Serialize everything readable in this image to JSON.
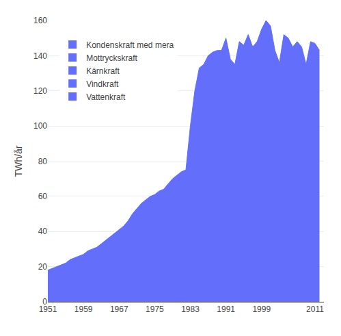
{
  "chart_data": {
    "type": "area",
    "y_label": "TWh/år",
    "annotations": [
      "Kondenskraft med mera",
      "Mottryckskraft",
      "Kärnkraft",
      "Vindkraft",
      "Vattenkraft"
    ],
    "legend": "upper left",
    "x": [
      1951,
      1952,
      1953,
      1954,
      1955,
      1956,
      1957,
      1958,
      1959,
      1960,
      1961,
      1962,
      1963,
      1964,
      1965,
      1966,
      1967,
      1968,
      1969,
      1970,
      1971,
      1972,
      1973,
      1974,
      1975,
      1976,
      1977,
      1978,
      1979,
      1980,
      1981,
      1982,
      1983,
      1984,
      1985,
      1986,
      1987,
      1988,
      1989,
      1990,
      1991,
      1992,
      1993,
      1994,
      1995,
      1996,
      1997,
      1998,
      1999,
      2000,
      2001,
      2002,
      2003,
      2004,
      2005,
      2006,
      2007,
      2008,
      2009,
      2010,
      2011,
      2012
    ],
    "values": [
      18,
      19,
      20,
      21,
      22,
      24,
      25,
      26,
      27,
      29,
      30,
      31,
      33,
      35,
      37,
      39,
      41,
      43,
      46,
      50,
      53,
      56,
      58,
      60,
      61,
      63,
      64,
      67,
      70,
      72,
      74,
      75,
      100,
      120,
      133,
      135,
      140,
      142,
      143,
      143,
      150,
      138,
      135,
      148,
      146,
      152,
      145,
      148,
      155,
      160,
      157,
      143,
      136,
      152,
      150,
      145,
      148,
      145,
      135,
      148,
      147,
      143
    ],
    "xlim": [
      1951,
      2013
    ],
    "xticks": [
      1951,
      1959,
      1967,
      1975,
      1983,
      1991,
      1999,
      2011
    ],
    "ylim": [
      0,
      160
    ],
    "yticks": [
      0,
      20,
      40,
      60,
      80,
      100,
      120,
      140,
      160
    ],
    "grid": true
  }
}
